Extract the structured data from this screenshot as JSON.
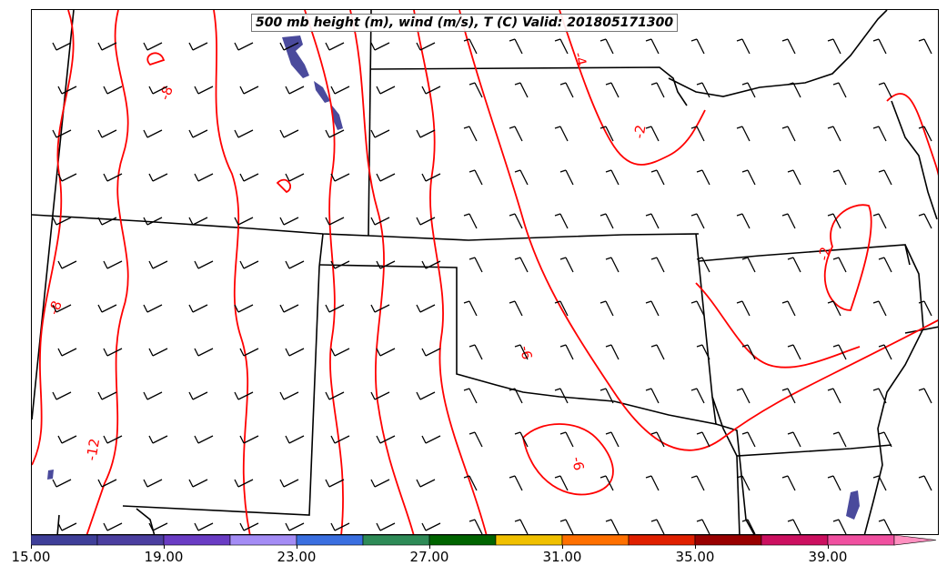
{
  "title": "500 mb height (m), wind (m/s), T (C) Valid: 201805171300",
  "colorbar": {
    "tick_labels": [
      "15.00",
      "19.00",
      "23.00",
      "27.00",
      "31.00",
      "35.00",
      "39.00"
    ],
    "colors": [
      "#3f3f99",
      "#4b3fa0",
      "#6a3cc4",
      "#a48cf5",
      "#3a6fe0",
      "#2e8b57",
      "#006400",
      "#f0c000",
      "#ff7000",
      "#e02000",
      "#990000",
      "#cc1060",
      "#f050a0",
      "#ff90c0"
    ]
  },
  "contour_labels": [
    "-8",
    "-8",
    "-4",
    "-2",
    "-2",
    "-6",
    "-6",
    "-12"
  ],
  "colors": {
    "temperature_contour": "#ff0000",
    "wind_barb": "#000000",
    "boundary": "#000000",
    "shading": "#4a4a9c"
  }
}
